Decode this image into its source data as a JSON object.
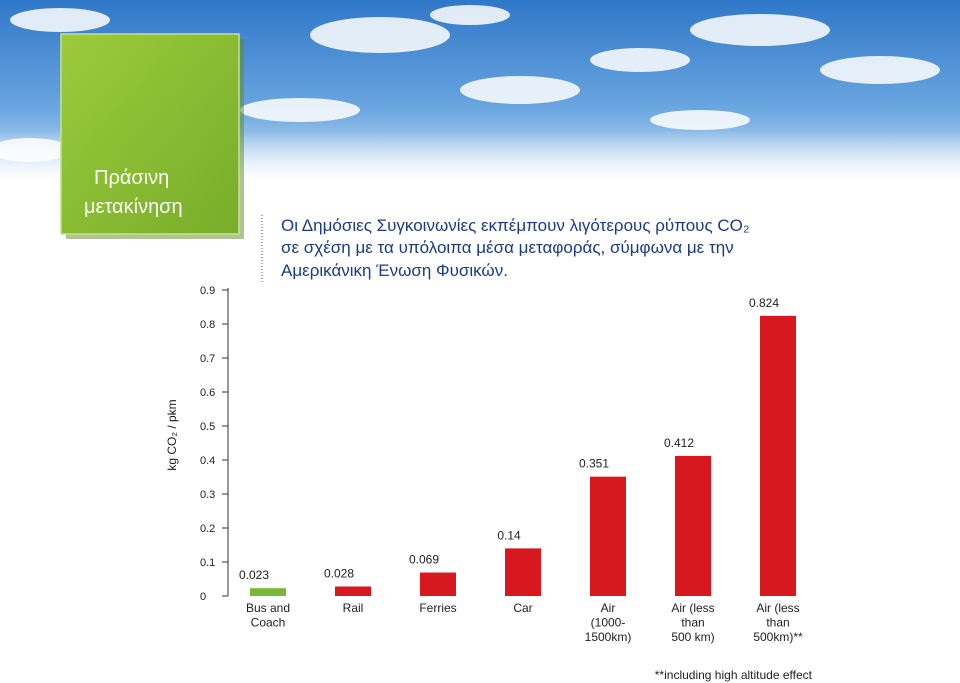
{
  "header": {
    "badge": [
      "Πράσινη",
      "μετακίνηση"
    ]
  },
  "chart_data": {
    "type": "bar",
    "title": [
      "Οι Δημόσιες Συγκοινωνίες εκπέμπουν λιγότερους ρύπους CO₂",
      "σε σχέση με τα υπόλοιπα μέσα μεταφοράς, σύμφωνα με την",
      "Αμερικάνικη Ένωση Φυσικών."
    ],
    "y_label": "kg CO₂ / pkm",
    "categories": [
      "Bus and\nCoach",
      "Rail",
      "Ferries",
      "Car",
      "Air\n(1000-\n1500km)",
      "Air (less\nthan\n500 km)",
      "Air (less\nthan\n500km)**"
    ],
    "values": [
      0.023,
      0.028,
      0.069,
      0.14,
      0.351,
      0.412,
      0.824
    ],
    "colors": [
      "#7ab73a",
      "#d7191f",
      "#d7191f",
      "#d7191f",
      "#d7191f",
      "#d7191f",
      "#d7191f"
    ],
    "ylim": [
      0,
      0.9
    ],
    "yticks": [
      0,
      0.1,
      0.2,
      0.3,
      0.4,
      0.5,
      0.6,
      0.7,
      0.8,
      0.9
    ],
    "footnote": "**including high altitude effect"
  }
}
